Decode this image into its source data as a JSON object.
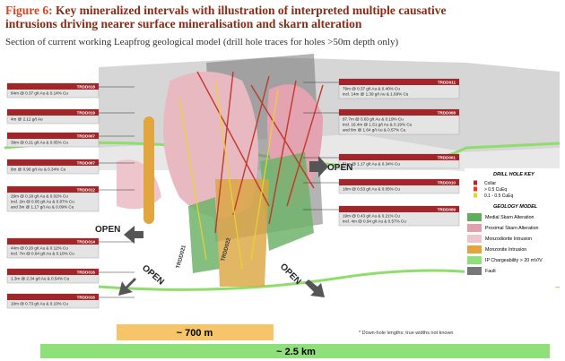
{
  "header": {
    "figure_label": "Figure 6:",
    "title": "Key mineralized intervals with illustration of interpreted multiple causative intrusions driving nearer surface mineralisation and skarn alteration",
    "subtitle": "Section of current working Leapfrog geological model (drill hole traces for holes >50m depth only)"
  },
  "callouts": {
    "left": [
      {
        "hole": "TRDD018",
        "lines": [
          "84m @ 0.37 g/t Au & 0.14% Cu"
        ]
      },
      {
        "hole": "TRDD019",
        "lines": [
          "4m @ 2.12 g/t Au"
        ]
      },
      {
        "hole": "TRDD007",
        "lines": [
          "39m @ 0.21 g/t Au & 0.05% Cu"
        ]
      },
      {
        "hole": "TRDD007",
        "lines": [
          "8m @ 0.96 g/t Au & 0.34% Cu"
        ]
      },
      {
        "hole": "TRDD012",
        "lines": [
          "29m @ 0.18 g/t Au & 0.02% Cu",
          "incl. 2m @ 0.05 g/t Au & 0.87% Cu",
          "and 3m @ 1.17 g/t Au & 0.09% Cu"
        ]
      },
      {
        "hole": "TRDD014",
        "lines": [
          "44m @ 0.20 g/t Au & 0.12% Cu",
          "incl. 7m @ 0.64 g/t Au & 0.10% Cu"
        ]
      },
      {
        "hole": "TRDD016",
        "lines": [
          "1.3m @ 2.34 g/t Au & 0.54% Cu"
        ]
      },
      {
        "hole": "TRDD016",
        "lines": [
          "10m @ 0.73 g/t Au & 0.10% Cu"
        ]
      }
    ],
    "right": [
      {
        "hole": "TRDD011",
        "lines": [
          "79m @ 0.37 g/t Au & 0.40% Cu",
          "incl. 14m @ 1.39 g/t Au & 1.69% Cu"
        ]
      },
      {
        "hole": "TRDD008",
        "lines": [
          "87.7m @ 0.63 g/t Au & 0.19% Cu",
          "incl. 16.4m @ 1.51 g/t Au & 0.19% Cu",
          "and 8m @ 1.64 g/t Au & 0.57% Cu"
        ]
      },
      {
        "hole": "TRDD001",
        "lines": [
          "51m @ 1.17 g/t Au & 0.34% Cu"
        ]
      },
      {
        "hole": "TRDD010",
        "lines": [
          "18m @ 0.53 g/t Au & 0.05% Cu"
        ]
      },
      {
        "hole": "TRDD009",
        "lines": [
          "19m @ 0.43 g/t Au & 0.21% Cu",
          "incl. 4m @ 0.94 g/t Au & 0.57% Cu"
        ]
      }
    ]
  },
  "model_labels": [
    "OPEN",
    "OPEN",
    "OPEN",
    "OPEN",
    "TRDD021",
    "TRDD022"
  ],
  "legend": {
    "drill_title": "DRILL HOLE KEY",
    "drill_items": [
      "Collar",
      "> 0.5 CuEq",
      "0.1 - 0.5 CuEq"
    ],
    "geology_title": "GEOLOGY MODEL",
    "geology_items": [
      "Medial Skarn Alteration",
      "Proximal Skarn Alteration",
      "Monzodiorite Intrusion",
      "Monzonite Intrusion",
      "IP Chargeability > 20 mV/V",
      "Fault"
    ]
  },
  "footnote": "* Down-hole lengths; true widths not known",
  "scale": {
    "short": "~ 700 m",
    "long": "~ 2.5 km"
  }
}
